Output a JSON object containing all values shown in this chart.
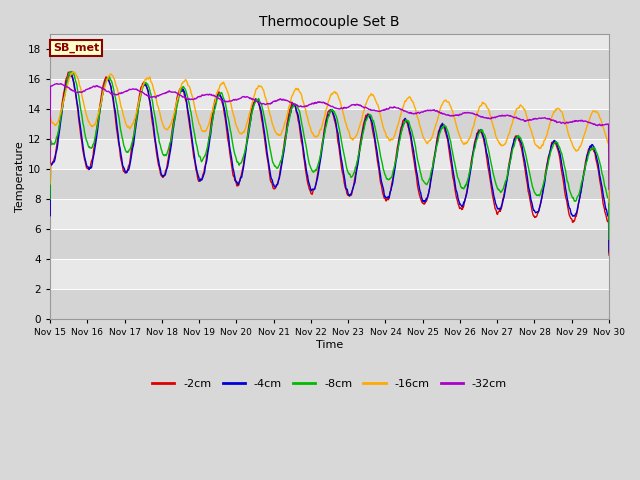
{
  "title": "Thermocouple Set B",
  "xlabel": "Time",
  "ylabel": "Temperature",
  "ylim": [
    0,
    19
  ],
  "yticks": [
    0,
    2,
    4,
    6,
    8,
    10,
    12,
    14,
    16,
    18
  ],
  "series": {
    "-2cm": {
      "color": "#dd0000"
    },
    "-4cm": {
      "color": "#0000dd"
    },
    "-8cm": {
      "color": "#00bb00"
    },
    "-16cm": {
      "color": "#ffaa00"
    },
    "-32cm": {
      "color": "#aa00cc"
    }
  },
  "legend_label": "SB_met",
  "bg_color": "#d8d8d8",
  "band_colors": [
    "#e8e8e8",
    "#d0d0d0"
  ],
  "grid_color": "#cccccc",
  "lw": 1.0
}
